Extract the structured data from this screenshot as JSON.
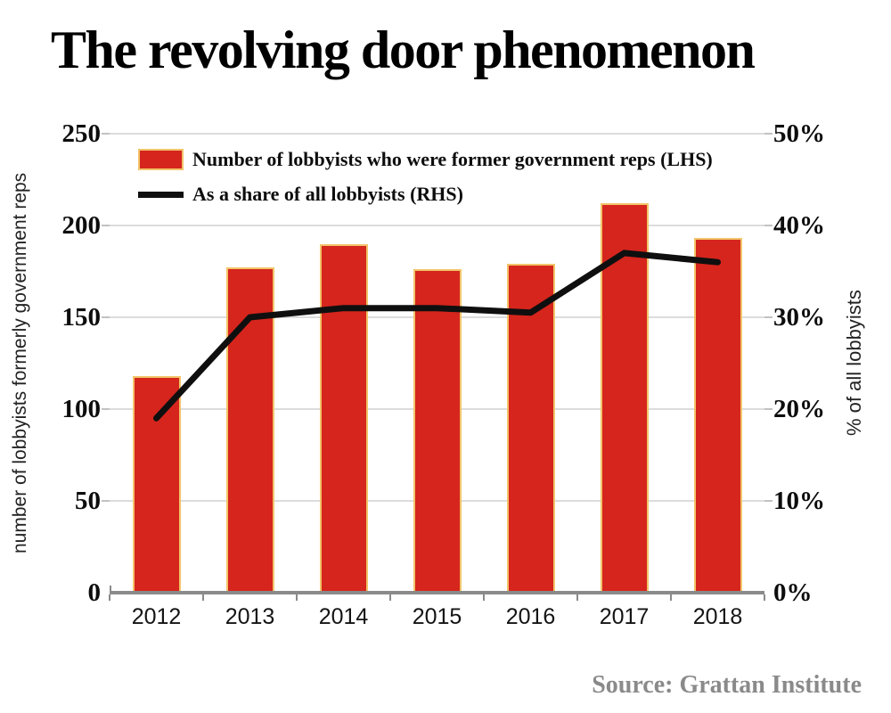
{
  "title": "The revolving door phenomenon",
  "source": "Source: Grattan Institute",
  "colors": {
    "bar_fill": "#d5251d",
    "bar_edge": "#f2c469",
    "line": "#0f0f0f",
    "gridline": "#dcdcdc",
    "axis_line": "#8a8a8a",
    "source_text": "#8a8a8a"
  },
  "legend": [
    {
      "type": "bar",
      "label": "Number of lobbyists who were former government reps (LHS)",
      "color": "#d5251d"
    },
    {
      "type": "line",
      "label": "As a share of all lobbyists (RHS)",
      "color": "#0f0f0f"
    }
  ],
  "chart_data": {
    "type": "bar",
    "subtype": "bar-and-line-dual-axis",
    "categories": [
      "2012",
      "2013",
      "2014",
      "2015",
      "2016",
      "2017",
      "2018"
    ],
    "series": [
      {
        "name": "Number of lobbyists who were former government reps (LHS)",
        "type": "bar",
        "axis": "left",
        "color": "#d5251d",
        "values": [
          118,
          177,
          190,
          176,
          179,
          212,
          193
        ]
      },
      {
        "name": "As a share of all lobbyists (RHS)",
        "type": "line",
        "axis": "right",
        "color": "#0f0f0f",
        "values": [
          19,
          30,
          31,
          31,
          30.5,
          37,
          36
        ]
      }
    ],
    "left_axis": {
      "label": "number of lobbyists formerly government reps",
      "ticks": [
        0,
        50,
        100,
        150,
        200,
        250
      ],
      "range": [
        0,
        250
      ]
    },
    "right_axis": {
      "label": "% of all lobbyists",
      "ticks": [
        "0%",
        "10%",
        "20%",
        "30%",
        "40%",
        "50%"
      ],
      "tick_values": [
        0,
        10,
        20,
        30,
        40,
        50
      ],
      "range": [
        0,
        50
      ]
    },
    "grid": true,
    "legend_position": "top-left-inside"
  }
}
